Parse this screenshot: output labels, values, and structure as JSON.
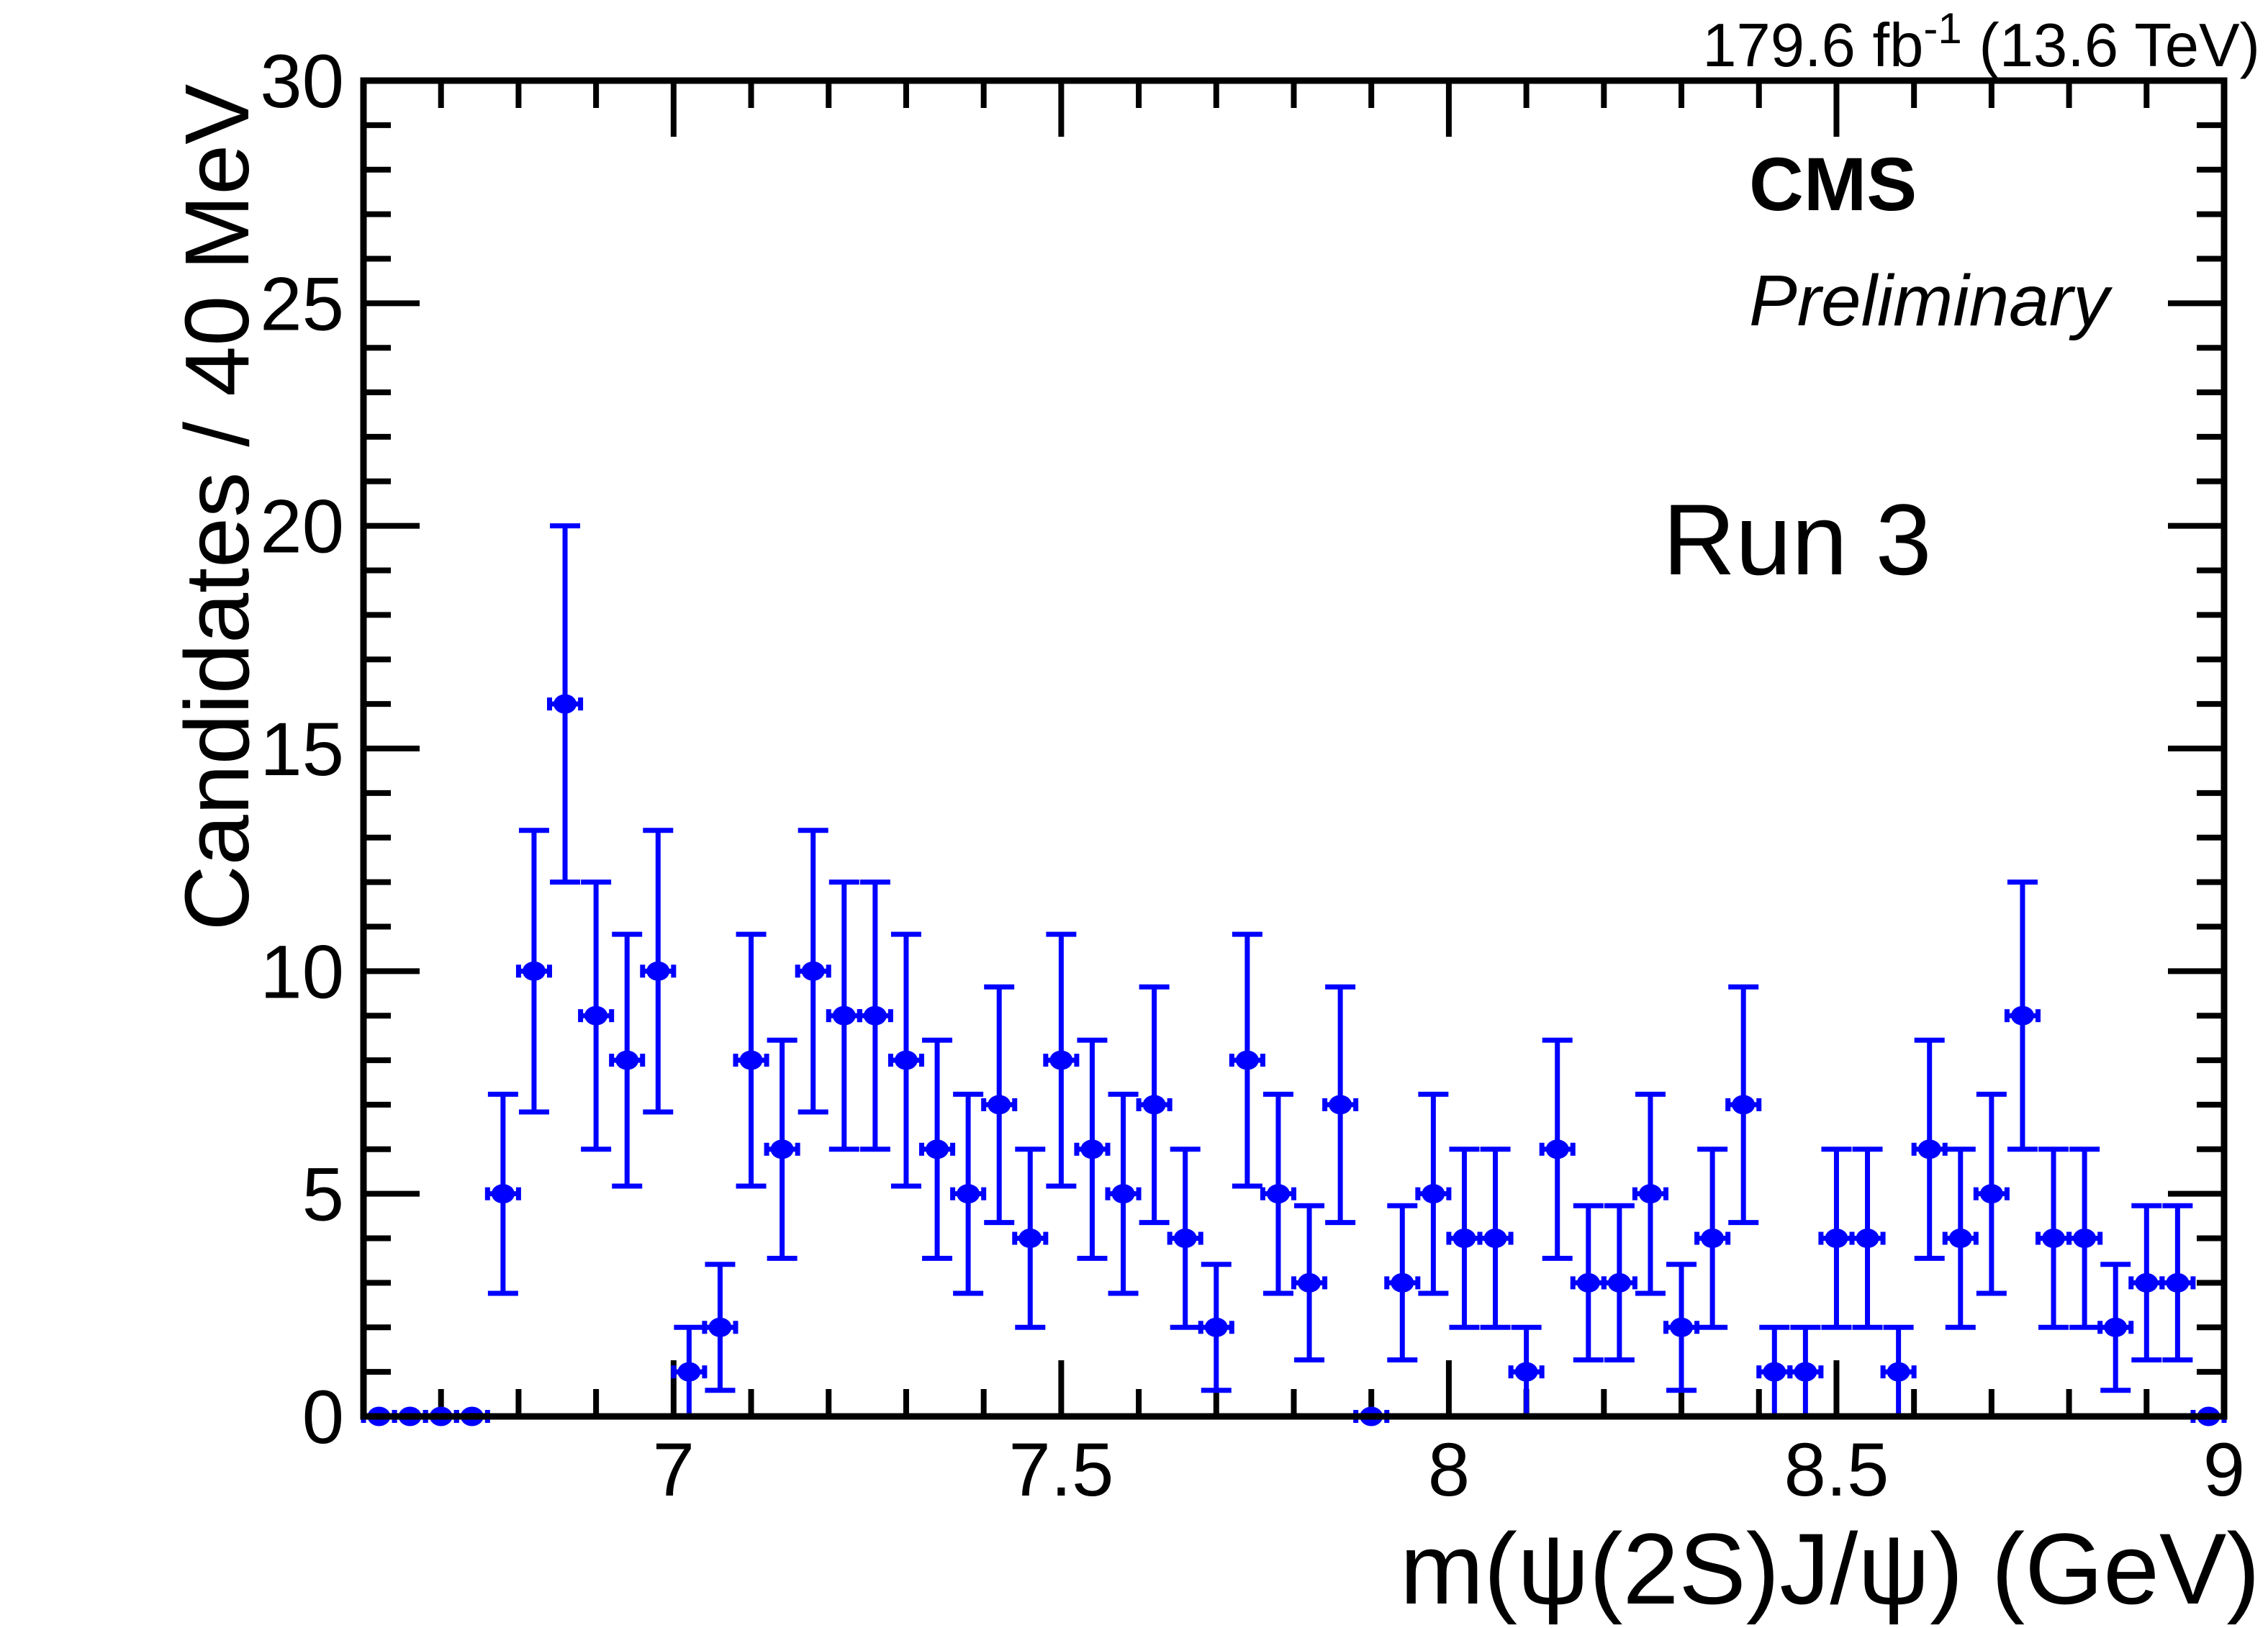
{
  "header": {
    "lumi_prefix": "179.6 fb",
    "lumi_superscript": "-1",
    "lumi_suffix": " (13.6 TeV)",
    "experiment": "CMS",
    "status": "Preliminary",
    "run_label": "Run 3",
    "run_label_color": "#0000ff"
  },
  "chart_data": {
    "type": "scatter",
    "title": "",
    "xlabel": "m(ψ(2S)J/ψ) (GeV)",
    "ylabel": "Candidates / 40 MeV",
    "xlim": [
      6.6,
      9.0
    ],
    "ylim": [
      0,
      30
    ],
    "grid": false,
    "legend": null,
    "bin_width_gev": 0.04,
    "x_err_gev": 0.02,
    "y_err_mode": "poisson sqrt(N); no vertical bar when N=0",
    "marker_color": "#0000ff",
    "axis_color": "#000000",
    "x_minor_step": 0.1,
    "y_minor_step": 1,
    "x_major_ticks": [
      {
        "value": 7.0,
        "label": "7"
      },
      {
        "value": 7.5,
        "label": "7.5"
      },
      {
        "value": 8.0,
        "label": "8"
      },
      {
        "value": 8.5,
        "label": "8.5"
      },
      {
        "value": 9.0,
        "label": "9"
      }
    ],
    "y_major_ticks": [
      {
        "value": 0,
        "label": "0"
      },
      {
        "value": 5,
        "label": "5"
      },
      {
        "value": 10,
        "label": "10"
      },
      {
        "value": 15,
        "label": "15"
      },
      {
        "value": 20,
        "label": "20"
      },
      {
        "value": 25,
        "label": "25"
      },
      {
        "value": 30,
        "label": "30"
      }
    ],
    "x": [
      6.62,
      6.66,
      6.7,
      6.74,
      6.78,
      6.82,
      6.86,
      6.9,
      6.94,
      6.98,
      7.02,
      7.06,
      7.1,
      7.14,
      7.18,
      7.22,
      7.26,
      7.3,
      7.34,
      7.38,
      7.42,
      7.46,
      7.5,
      7.54,
      7.58,
      7.62,
      7.66,
      7.7,
      7.74,
      7.78,
      7.82,
      7.86,
      7.9,
      7.94,
      7.98,
      8.02,
      8.06,
      8.1,
      8.14,
      8.18,
      8.22,
      8.26,
      8.3,
      8.34,
      8.38,
      8.42,
      8.46,
      8.5,
      8.54,
      8.58,
      8.62,
      8.66,
      8.7,
      8.74,
      8.78,
      8.82,
      8.86,
      8.9,
      8.94,
      8.98
    ],
    "y": [
      0,
      0,
      0,
      0,
      5,
      10,
      16,
      9,
      8,
      10,
      1,
      2,
      8,
      6,
      10,
      9,
      9,
      8,
      6,
      5,
      7,
      4,
      8,
      6,
      5,
      7,
      4,
      2,
      8,
      5,
      3,
      7,
      0,
      3,
      5,
      4,
      4,
      1,
      6,
      3,
      3,
      5,
      2,
      4,
      7,
      1,
      1,
      4,
      4,
      1,
      6,
      4,
      5,
      9,
      4,
      4,
      2,
      3,
      3,
      0
    ]
  }
}
